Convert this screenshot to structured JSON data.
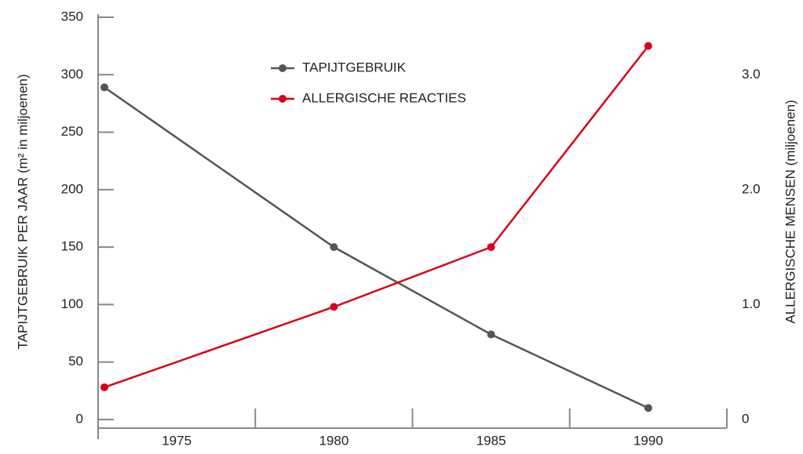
{
  "chart_data": {
    "type": "line",
    "y_label": "TAPIJTGEBRUIK PER JAAR (m² in miljoenen)",
    "y2_label": "ALLERGISCHE MENSEN (miljoenen)",
    "x": [
      1972.7,
      1980,
      1985,
      1990
    ],
    "series": [
      {
        "name": "TAPIJTGEBRUIK",
        "color": "#555555",
        "values": [
          289,
          150,
          74,
          10
        ]
      },
      {
        "name": "ALLERGISCHE REACTIES",
        "color": "#d9001b",
        "axis": "y2",
        "values": [
          0.28,
          0.98,
          1.5,
          3.25
        ]
      }
    ],
    "xlim": [
      1972.5,
      1992.5
    ],
    "xticks": [
      1975,
      1980,
      1985,
      1990
    ],
    "xtick_marks": [
      1977.5,
      1982.5,
      1987.5,
      1992.5
    ],
    "ylim": [
      0,
      350
    ],
    "yticks": [
      0,
      50,
      100,
      150,
      200,
      250,
      300,
      350
    ],
    "y2lim": [
      0,
      3.5
    ],
    "y2ticks": [
      0,
      {
        "value": 1,
        "label": "1.0"
      },
      {
        "value": 2,
        "label": "2.0"
      },
      {
        "value": 3,
        "label": "3.0"
      }
    ],
    "legend": "top-center",
    "grid": false
  }
}
